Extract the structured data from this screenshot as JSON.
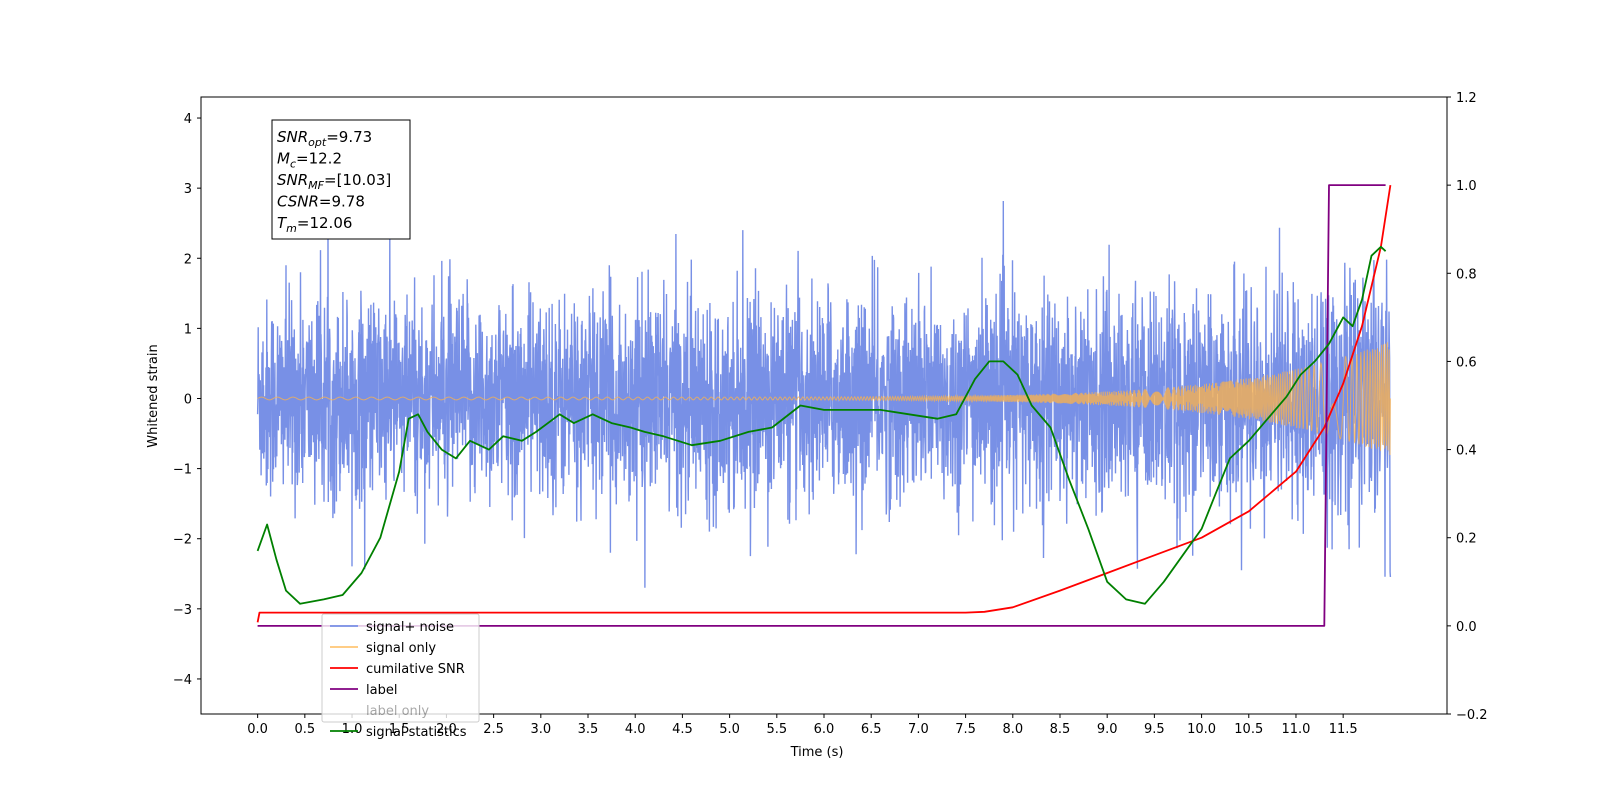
{
  "chart_data": {
    "type": "line",
    "xlabel": "Time (s)",
    "ylabel": "Whitened strain",
    "xlim": [
      -0.6,
      12.6
    ],
    "ylim": [
      -4.5,
      4.3
    ],
    "y2lim": [
      -0.2,
      1.2
    ],
    "x_ticks": [
      "0.0",
      "0.5",
      "1.0",
      "1.5",
      "2.0",
      "2.5",
      "3.0",
      "3.5",
      "4.0",
      "4.5",
      "5.0",
      "5.5",
      "6.0",
      "6.5",
      "7.0",
      "7.5",
      "8.0",
      "8.5",
      "9.0",
      "9.5",
      "10.0",
      "10.5",
      "11.0",
      "11.5"
    ],
    "y_ticks": [
      "4",
      "3",
      "2",
      "1",
      "0",
      "−1",
      "−2",
      "−3",
      "−4"
    ],
    "y2_ticks": [
      "1.2",
      "1.0",
      "0.8",
      "0.6",
      "0.4",
      "0.2",
      "0.0",
      "−0.2"
    ],
    "info_box": [
      {
        "sym": "SNR",
        "sub": "opt",
        "rest": "=9.73"
      },
      {
        "sym": "M",
        "sub": "c",
        "rest": "=12.2"
      },
      {
        "sym": "SNR",
        "sub": "MF",
        "rest": "=[10.03]"
      },
      {
        "sym": "CSNR",
        "sub": "",
        "rest": "=9.78"
      },
      {
        "sym": "T",
        "sub": "m",
        "rest": "=12.06"
      }
    ],
    "legend_position": "lower-left",
    "series": [
      {
        "name": "signal+ noise",
        "color": "#7890e6",
        "axis": "left",
        "pattern": "gaussian noise, std ≈ 0.75, span 0.0–12.0 s"
      },
      {
        "name": "signal only",
        "color": "#ffb347",
        "axis": "left",
        "pattern": "chirp, amplitude growing to ≈ 0.8 at 12.0 s"
      },
      {
        "name": "cumilative SNR",
        "color": "#ff0000",
        "axis": "right",
        "x": [
          0.0,
          0.02,
          7.5,
          7.7,
          8.0,
          8.5,
          9.0,
          9.5,
          10.0,
          10.5,
          11.0,
          11.3,
          11.5,
          11.7,
          11.9,
          12.0
        ],
        "values": [
          0.008,
          0.03,
          0.03,
          0.032,
          0.042,
          0.08,
          0.12,
          0.16,
          0.2,
          0.26,
          0.35,
          0.45,
          0.55,
          0.68,
          0.86,
          1.0
        ]
      },
      {
        "name": "label",
        "color": "#800080",
        "axis": "right",
        "x": [
          0.0,
          11.3,
          11.35,
          11.95
        ],
        "values": [
          0.0,
          0.0,
          1.0,
          1.0
        ]
      },
      {
        "name": "label only",
        "color": "#800080",
        "axis": "right",
        "hidden": true,
        "x": [],
        "values": []
      },
      {
        "name": "signal statistics",
        "color": "#008000",
        "axis": "right",
        "x": [
          0.0,
          0.1,
          0.2,
          0.3,
          0.45,
          0.7,
          0.9,
          1.1,
          1.3,
          1.5,
          1.6,
          1.7,
          1.8,
          1.95,
          2.1,
          2.25,
          2.45,
          2.6,
          2.8,
          2.95,
          3.2,
          3.35,
          3.55,
          3.75,
          3.95,
          4.1,
          4.3,
          4.6,
          4.9,
          5.2,
          5.45,
          5.75,
          6.0,
          6.3,
          6.6,
          6.9,
          7.2,
          7.4,
          7.6,
          7.75,
          7.9,
          8.05,
          8.2,
          8.4,
          8.6,
          8.8,
          9.0,
          9.2,
          9.4,
          9.6,
          9.8,
          10.0,
          10.15,
          10.3,
          10.5,
          10.7,
          10.9,
          11.05,
          11.2,
          11.35,
          11.5,
          11.6,
          11.7,
          11.8,
          11.9,
          11.95
        ],
        "values": [
          0.17,
          0.23,
          0.15,
          0.08,
          0.05,
          0.06,
          0.07,
          0.12,
          0.2,
          0.35,
          0.47,
          0.48,
          0.44,
          0.4,
          0.38,
          0.42,
          0.4,
          0.43,
          0.42,
          0.44,
          0.48,
          0.46,
          0.48,
          0.46,
          0.45,
          0.44,
          0.43,
          0.41,
          0.42,
          0.44,
          0.45,
          0.5,
          0.49,
          0.49,
          0.49,
          0.48,
          0.47,
          0.48,
          0.56,
          0.6,
          0.6,
          0.57,
          0.5,
          0.45,
          0.33,
          0.22,
          0.1,
          0.06,
          0.05,
          0.1,
          0.16,
          0.22,
          0.3,
          0.38,
          0.42,
          0.47,
          0.52,
          0.57,
          0.6,
          0.64,
          0.7,
          0.68,
          0.74,
          0.84,
          0.86,
          0.85
        ]
      }
    ]
  }
}
